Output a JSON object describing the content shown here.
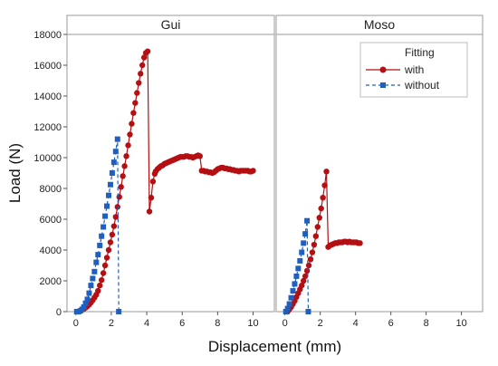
{
  "chart_data": {
    "type": "line",
    "xlabel": "Displacement (mm)",
    "ylabel": "Load (N)",
    "xlim": [
      -0.5,
      11.2
    ],
    "ylim": [
      0,
      18000
    ],
    "xticks": [
      0,
      2,
      4,
      6,
      8,
      10
    ],
    "yticks": [
      0,
      2000,
      4000,
      6000,
      8000,
      10000,
      12000,
      14000,
      16000,
      18000
    ],
    "grid": false,
    "legend": {
      "title": "Fitting",
      "position": "top-right of Moso panel",
      "entries": [
        "with",
        "without"
      ]
    },
    "series_styles": {
      "with": {
        "color": "#b40f13",
        "marker": "circle",
        "line": "solid"
      },
      "without": {
        "color": "#1f5fbf",
        "marker": "square",
        "line": "dashed"
      }
    },
    "panels": [
      {
        "title": "Gui",
        "series": [
          {
            "name": "with",
            "x": [
              0.15,
              0.25,
              0.35,
              0.45,
              0.55,
              0.65,
              0.75,
              0.85,
              0.95,
              1.05,
              1.15,
              1.25,
              1.35,
              1.45,
              1.55,
              1.65,
              1.75,
              1.85,
              1.95,
              2.05,
              2.15,
              2.25,
              2.35,
              2.45,
              2.55,
              2.65,
              2.75,
              2.85,
              2.95,
              3.05,
              3.15,
              3.25,
              3.35,
              3.45,
              3.55,
              3.65,
              3.75,
              3.85,
              3.95,
              4.05,
              4.15,
              4.25,
              4.35,
              4.45,
              4.5,
              4.6,
              4.7,
              4.8,
              4.9,
              5.0,
              5.1,
              5.2,
              5.3,
              5.4,
              5.5,
              5.6,
              5.7,
              5.8,
              5.9,
              6.0,
              6.1,
              6.2,
              6.3,
              6.4,
              6.5,
              6.6,
              6.7,
              6.8,
              6.9,
              7.0,
              7.1,
              7.2,
              7.3,
              7.4,
              7.5,
              7.6,
              7.7,
              7.8,
              7.9,
              8.0,
              8.1,
              8.2,
              8.3,
              8.4,
              8.5,
              8.6,
              8.7,
              8.8,
              8.9,
              9.0,
              9.1,
              9.2,
              9.3,
              9.4,
              9.5,
              9.6,
              9.7,
              9.8,
              9.9,
              10.0
            ],
            "y": [
              0,
              60,
              120,
              180,
              260,
              350,
              460,
              590,
              740,
              910,
              1100,
              1350,
              1700,
              2050,
              2500,
              3000,
              3500,
              4000,
              4500,
              5000,
              5550,
              6150,
              6800,
              7450,
              8100,
              8800,
              9450,
              10100,
              10800,
              11500,
              12200,
              12900,
              13550,
              14200,
              14850,
              15450,
              16000,
              16500,
              16800,
              16900,
              6500,
              7400,
              8450,
              8950,
              9100,
              9250,
              9350,
              9450,
              9500,
              9600,
              9650,
              9700,
              9750,
              9800,
              9850,
              9900,
              9950,
              10000,
              10050,
              10050,
              10050,
              10100,
              10100,
              10050,
              10050,
              10000,
              10050,
              10100,
              10150,
              10100,
              9150,
              9150,
              9100,
              9100,
              9050,
              9050,
              9000,
              9050,
              9150,
              9250,
              9300,
              9350,
              9350,
              9300,
              9300,
              9250,
              9250,
              9200,
              9200,
              9150,
              9150,
              9100,
              9150,
              9150,
              9150,
              9150,
              9150,
              9100,
              9100,
              9150
            ],
            "note": "values estimated"
          },
          {
            "name": "without",
            "x": [
              0.05,
              0.15,
              0.25,
              0.35,
              0.45,
              0.55,
              0.65,
              0.75,
              0.85,
              0.95,
              1.05,
              1.15,
              1.25,
              1.35,
              1.45,
              1.55,
              1.65,
              1.75,
              1.85,
              1.95,
              2.05,
              2.15,
              2.25,
              2.35,
              2.42
            ],
            "y": [
              0,
              0,
              50,
              150,
              300,
              550,
              800,
              1200,
              1700,
              2150,
              2600,
              3200,
              3700,
              4300,
              4900,
              5500,
              6200,
              6850,
              7550,
              8250,
              9000,
              9700,
              10400,
              11200,
              0
            ]
          }
        ]
      },
      {
        "title": "Moso",
        "series": [
          {
            "name": "with",
            "x": [
              0.15,
              0.25,
              0.35,
              0.45,
              0.55,
              0.65,
              0.75,
              0.85,
              0.95,
              1.05,
              1.15,
              1.25,
              1.35,
              1.45,
              1.55,
              1.65,
              1.75,
              1.85,
              1.95,
              2.05,
              2.15,
              2.25,
              2.35,
              2.45,
              2.55,
              2.65,
              2.75,
              2.85,
              2.95,
              3.05,
              3.15,
              3.25,
              3.35,
              3.45,
              3.55,
              3.65,
              3.75,
              3.85,
              3.95,
              4.05,
              4.15,
              4.25
            ],
            "y": [
              0,
              150,
              300,
              500,
              700,
              950,
              1200,
              1450,
              1700,
              2000,
              2300,
              2650,
              3000,
              3400,
              3850,
              4350,
              4900,
              5500,
              6100,
              6700,
              7400,
              8200,
              9100,
              4200,
              4300,
              4350,
              4400,
              4450,
              4450,
              4500,
              4500,
              4500,
              4550,
              4550,
              4500,
              4550,
              4500,
              4500,
              4500,
              4500,
              4450,
              4450
            ]
          },
          {
            "name": "without",
            "x": [
              0.05,
              0.15,
              0.25,
              0.35,
              0.45,
              0.55,
              0.65,
              0.75,
              0.85,
              0.95,
              1.05,
              1.15,
              1.25,
              1.32
            ],
            "y": [
              0,
              200,
              500,
              900,
              1350,
              1800,
              2300,
              2800,
              3300,
              3850,
              4450,
              5050,
              5900,
              0
            ]
          }
        ]
      }
    ]
  }
}
